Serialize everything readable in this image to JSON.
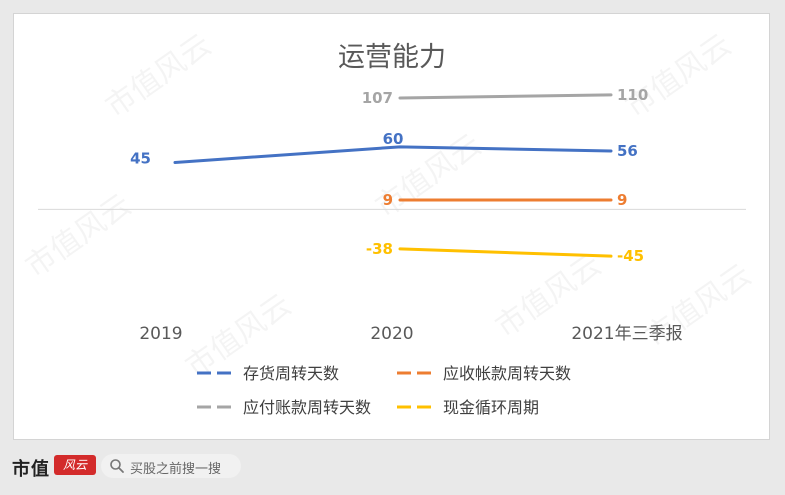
{
  "watermark_text": "市值风云",
  "chart_data": {
    "type": "line",
    "title": "运营能力",
    "categories": [
      "2019",
      "2020",
      "2021年三季报"
    ],
    "series": [
      {
        "name": "存货周转天数",
        "color": "#4472c4",
        "values": [
          45,
          60,
          56
        ]
      },
      {
        "name": "应收帐款周转天数",
        "color": "#ed7d31",
        "values": [
          null,
          9,
          9
        ]
      },
      {
        "name": "应付账款周转天数",
        "color": "#a5a5a5",
        "values": [
          null,
          107,
          110
        ]
      },
      {
        "name": "现金循环周期",
        "color": "#ffc000",
        "values": [
          null,
          -38,
          -45
        ]
      }
    ],
    "xlabel": "",
    "ylabel": "",
    "ylim": [
      -90,
      130
    ],
    "grid": false,
    "legend_position": "bottom"
  },
  "footer": {
    "brand": "市值",
    "brand_mark": "风云",
    "search_placeholder": "买股之前搜一搜"
  }
}
